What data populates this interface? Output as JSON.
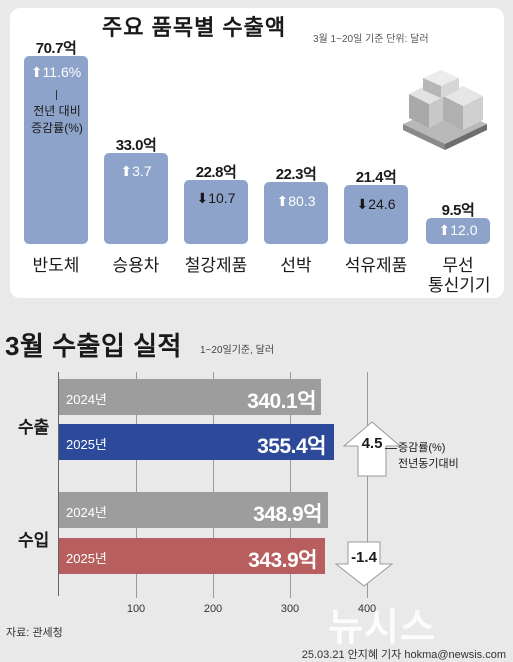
{
  "top": {
    "title": "주요 품목별 수출액",
    "subtitle": "3월 1~20일 기준 단위: 달러",
    "yoy_note_line1": "전년 대비",
    "yoy_note_line2": "증감률(%)"
  },
  "bottom": {
    "title_main": "3월 수출입 실적",
    "subtitle": "1~20일기준, 달러",
    "export_label": "수출",
    "import_label": "수입",
    "legend_line1": "증감률(%)",
    "legend_line2": "전년동기대비",
    "source": "자료: 관세청",
    "credit": "25.03.21 안지혜 기자 hokma@newsis.com",
    "watermark": "뉴시스"
  },
  "colors": {
    "bar_blue_light": "#8ea3c9",
    "bar_gray": "#9d9d9d",
    "bar_navy": "#2d4a9a",
    "bar_red": "#b85e5e"
  },
  "chart_data": [
    {
      "type": "bar",
      "title": "주요 품목별 수출액",
      "unit": "억 달러",
      "categories": [
        "반도체",
        "승용차",
        "철강제품",
        "선박",
        "석유제품",
        "무선 통신기기"
      ],
      "values": [
        70.7,
        33.0,
        22.8,
        22.3,
        21.4,
        9.5
      ],
      "value_labels": [
        "70.7억",
        "33.0억",
        "22.8억",
        "22.3억",
        "21.4억",
        "9.5억"
      ],
      "yoy_change_pct": [
        11.6,
        3.7,
        -10.7,
        80.3,
        -24.6,
        12.0
      ],
      "yoy_change_labels": [
        "11.6%",
        "3.7",
        "10.7",
        "80.3",
        "24.6",
        "12.0"
      ]
    },
    {
      "type": "bar",
      "orientation": "horizontal",
      "title": "3월 수출입 실적",
      "unit": "억 달러",
      "groups": [
        {
          "name": "수출",
          "bars": [
            {
              "year": "2024년",
              "value": 340.1,
              "label": "340.1억"
            },
            {
              "year": "2025년",
              "value": 355.4,
              "label": "355.4억"
            }
          ],
          "change_pct": 4.5,
          "change_label": "4.5"
        },
        {
          "name": "수입",
          "bars": [
            {
              "year": "2024년",
              "value": 348.9,
              "label": "348.9억"
            },
            {
              "year": "2025년",
              "value": 343.9,
              "label": "343.9억"
            }
          ],
          "change_pct": -1.4,
          "change_label": "-1.4"
        }
      ],
      "xticks": [
        100,
        200,
        300,
        400
      ],
      "xlim": [
        0,
        400
      ]
    }
  ]
}
